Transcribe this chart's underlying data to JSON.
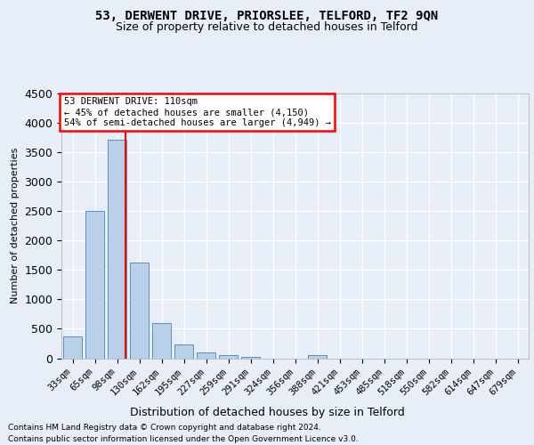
{
  "title1": "53, DERWENT DRIVE, PRIORSLEE, TELFORD, TF2 9QN",
  "title2": "Size of property relative to detached houses in Telford",
  "xlabel": "Distribution of detached houses by size in Telford",
  "ylabel": "Number of detached properties",
  "categories": [
    "33sqm",
    "65sqm",
    "98sqm",
    "130sqm",
    "162sqm",
    "195sqm",
    "227sqm",
    "259sqm",
    "291sqm",
    "324sqm",
    "356sqm",
    "388sqm",
    "421sqm",
    "453sqm",
    "485sqm",
    "518sqm",
    "550sqm",
    "582sqm",
    "614sqm",
    "647sqm",
    "679sqm"
  ],
  "values": [
    370,
    2510,
    3720,
    1630,
    590,
    230,
    105,
    60,
    30,
    0,
    0,
    60,
    0,
    0,
    0,
    0,
    0,
    0,
    0,
    0,
    0
  ],
  "bar_color": "#b8d0e8",
  "bar_edge_color": "#5a8fc0",
  "vline_index": 2,
  "vline_color": "red",
  "ylim": [
    0,
    4500
  ],
  "yticks": [
    0,
    500,
    1000,
    1500,
    2000,
    2500,
    3000,
    3500,
    4000,
    4500
  ],
  "annotation_title": "53 DERWENT DRIVE: 110sqm",
  "annotation_line1": "← 45% of detached houses are smaller (4,150)",
  "annotation_line2": "54% of semi-detached houses are larger (4,949) →",
  "annotation_box_edgecolor": "red",
  "footnote1": "Contains HM Land Registry data © Crown copyright and database right 2024.",
  "footnote2": "Contains public sector information licensed under the Open Government Licence v3.0.",
  "bg_color": "#e8eef8",
  "plot_bg_color": "#e8eef8",
  "grid_color": "#ffffff",
  "title1_fontsize": 10,
  "title2_fontsize": 9,
  "xlabel_fontsize": 9,
  "ylabel_fontsize": 8,
  "tick_fontsize": 7.5,
  "annot_fontsize": 7.5,
  "footnote_fontsize": 6.5
}
